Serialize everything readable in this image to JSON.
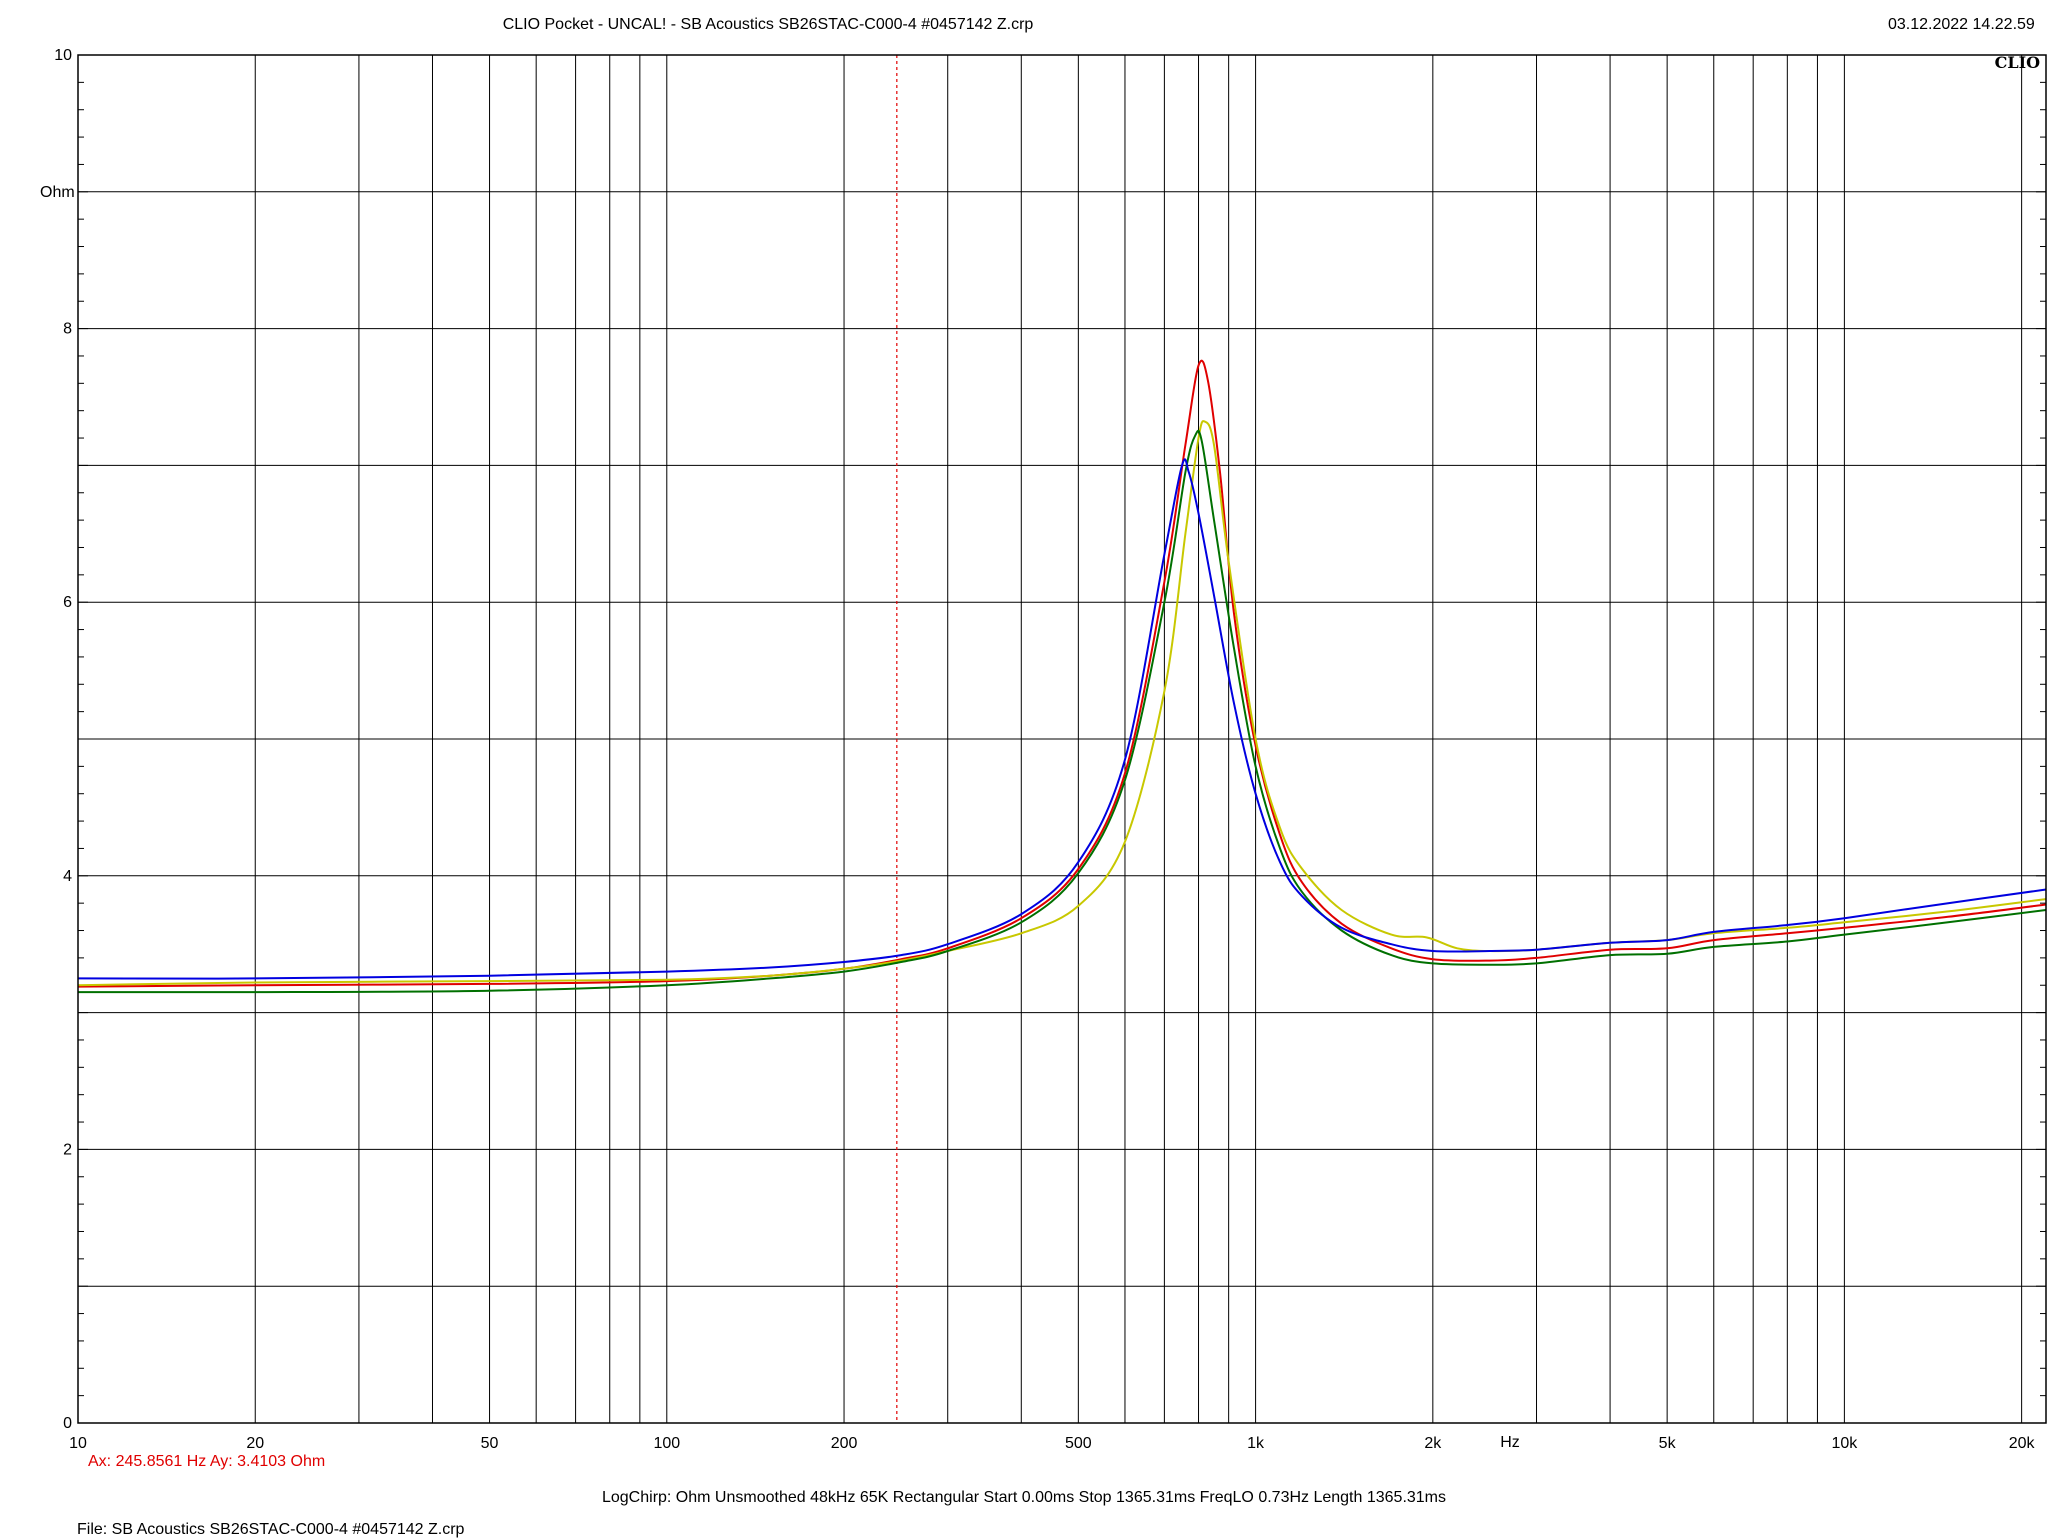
{
  "header": {
    "title": "CLIO Pocket - UNCAL! - SB Acoustics SB26STAC-C000-4 #0457142 Z.crp",
    "timestamp": "03.12.2022 14.22.59",
    "logo_text": "CLIO"
  },
  "cursor": {
    "readout": "Ax: 245.8561 Hz   Ay: 3.4103 Ohm",
    "x_hz": 245.8561,
    "y_ohm": 3.4103,
    "color": "#e00000"
  },
  "footer": {
    "settings": "LogChirp:  Ohm   Unsmoothed   48kHz   65K   Rectangular   Start 0.00ms    Stop 1365.31ms    FreqLO 0.73Hz    Length 1365.31ms",
    "file": "File: SB Acoustics SB26STAC-C000-4 #0457142 Z.crp"
  },
  "chart_data": {
    "type": "line",
    "title": "CLIO Pocket - UNCAL! - SB Acoustics SB26STAC-C000-4 #0457142 Z.crp",
    "xlabel": "Hz",
    "ylabel": "Ohm",
    "x_scale": "log",
    "xlim": [
      10,
      22000
    ],
    "ylim": [
      0,
      10
    ],
    "grid": true,
    "x_tick_labels": [
      {
        "value": 10,
        "label": "10"
      },
      {
        "value": 20,
        "label": "20"
      },
      {
        "value": 50,
        "label": "50"
      },
      {
        "value": 100,
        "label": "100"
      },
      {
        "value": 200,
        "label": "200"
      },
      {
        "value": 500,
        "label": "500"
      },
      {
        "value": 1000,
        "label": "1k"
      },
      {
        "value": 2000,
        "label": "2k"
      },
      {
        "value": 5000,
        "label": "5k"
      },
      {
        "value": 10000,
        "label": "10k"
      },
      {
        "value": 20000,
        "label": "20k"
      }
    ],
    "y_tick_labels": [
      {
        "value": 0,
        "label": "0"
      },
      {
        "value": 2,
        "label": "2"
      },
      {
        "value": 4,
        "label": "4"
      },
      {
        "value": 6,
        "label": "6"
      },
      {
        "value": 8,
        "label": "8"
      },
      {
        "value": 10,
        "label": "10"
      }
    ],
    "series": [
      {
        "color": "#e00000",
        "points": [
          [
            10,
            3.19
          ],
          [
            20,
            3.2
          ],
          [
            50,
            3.21
          ],
          [
            100,
            3.23
          ],
          [
            150,
            3.27
          ],
          [
            200,
            3.32
          ],
          [
            250,
            3.39
          ],
          [
            300,
            3.47
          ],
          [
            400,
            3.69
          ],
          [
            500,
            4.05
          ],
          [
            600,
            4.75
          ],
          [
            700,
            6.15
          ],
          [
            760,
            7.15
          ],
          [
            800,
            7.73
          ],
          [
            830,
            7.62
          ],
          [
            870,
            6.95
          ],
          [
            920,
            5.9
          ],
          [
            1000,
            4.95
          ],
          [
            1100,
            4.3
          ],
          [
            1200,
            3.95
          ],
          [
            1400,
            3.65
          ],
          [
            1700,
            3.47
          ],
          [
            2000,
            3.39
          ],
          [
            2500,
            3.38
          ],
          [
            3000,
            3.4
          ],
          [
            4000,
            3.46
          ],
          [
            5000,
            3.47
          ],
          [
            6000,
            3.53
          ],
          [
            8000,
            3.58
          ],
          [
            10000,
            3.62
          ],
          [
            15000,
            3.7
          ],
          [
            22000,
            3.79
          ]
        ]
      },
      {
        "color": "#c8c800",
        "points": [
          [
            10,
            3.2
          ],
          [
            20,
            3.22
          ],
          [
            50,
            3.23
          ],
          [
            100,
            3.24
          ],
          [
            150,
            3.27
          ],
          [
            200,
            3.32
          ],
          [
            250,
            3.38
          ],
          [
            300,
            3.45
          ],
          [
            400,
            3.58
          ],
          [
            500,
            3.78
          ],
          [
            600,
            4.25
          ],
          [
            700,
            5.35
          ],
          [
            760,
            6.5
          ],
          [
            800,
            7.2
          ],
          [
            820,
            7.32
          ],
          [
            850,
            7.15
          ],
          [
            900,
            6.3
          ],
          [
            1000,
            5.0
          ],
          [
            1100,
            4.35
          ],
          [
            1200,
            4.05
          ],
          [
            1400,
            3.75
          ],
          [
            1700,
            3.57
          ],
          [
            1950,
            3.55
          ],
          [
            2200,
            3.47
          ],
          [
            2500,
            3.45
          ],
          [
            3000,
            3.46
          ],
          [
            4000,
            3.51
          ],
          [
            5000,
            3.53
          ],
          [
            6000,
            3.58
          ],
          [
            8000,
            3.62
          ],
          [
            10000,
            3.66
          ],
          [
            15000,
            3.74
          ],
          [
            22000,
            3.83
          ]
        ]
      },
      {
        "color": "#007000",
        "points": [
          [
            10,
            3.15
          ],
          [
            20,
            3.15
          ],
          [
            50,
            3.16
          ],
          [
            100,
            3.2
          ],
          [
            150,
            3.25
          ],
          [
            200,
            3.3
          ],
          [
            250,
            3.37
          ],
          [
            300,
            3.45
          ],
          [
            400,
            3.66
          ],
          [
            500,
            4.02
          ],
          [
            600,
            4.7
          ],
          [
            700,
            6.0
          ],
          [
            760,
            6.95
          ],
          [
            790,
            7.22
          ],
          [
            810,
            7.18
          ],
          [
            850,
            6.6
          ],
          [
            920,
            5.65
          ],
          [
            1000,
            4.8
          ],
          [
            1100,
            4.2
          ],
          [
            1200,
            3.88
          ],
          [
            1400,
            3.6
          ],
          [
            1700,
            3.42
          ],
          [
            2000,
            3.36
          ],
          [
            2500,
            3.35
          ],
          [
            3000,
            3.36
          ],
          [
            4000,
            3.42
          ],
          [
            5000,
            3.43
          ],
          [
            6000,
            3.48
          ],
          [
            8000,
            3.52
          ],
          [
            10000,
            3.57
          ],
          [
            15000,
            3.66
          ],
          [
            22000,
            3.75
          ]
        ]
      },
      {
        "color": "#0000e0",
        "points": [
          [
            10,
            3.25
          ],
          [
            20,
            3.25
          ],
          [
            50,
            3.27
          ],
          [
            100,
            3.3
          ],
          [
            150,
            3.33
          ],
          [
            200,
            3.37
          ],
          [
            250,
            3.42
          ],
          [
            300,
            3.5
          ],
          [
            400,
            3.72
          ],
          [
            500,
            4.1
          ],
          [
            600,
            4.85
          ],
          [
            700,
            6.35
          ],
          [
            750,
            7.0
          ],
          [
            770,
            6.95
          ],
          [
            800,
            6.65
          ],
          [
            850,
            6.05
          ],
          [
            920,
            5.25
          ],
          [
            1000,
            4.6
          ],
          [
            1100,
            4.1
          ],
          [
            1200,
            3.85
          ],
          [
            1400,
            3.62
          ],
          [
            1700,
            3.5
          ],
          [
            2000,
            3.45
          ],
          [
            2500,
            3.45
          ],
          [
            3000,
            3.46
          ],
          [
            4000,
            3.51
          ],
          [
            5000,
            3.53
          ],
          [
            6000,
            3.59
          ],
          [
            8000,
            3.64
          ],
          [
            10000,
            3.69
          ],
          [
            15000,
            3.8
          ],
          [
            22000,
            3.9
          ]
        ]
      }
    ]
  }
}
